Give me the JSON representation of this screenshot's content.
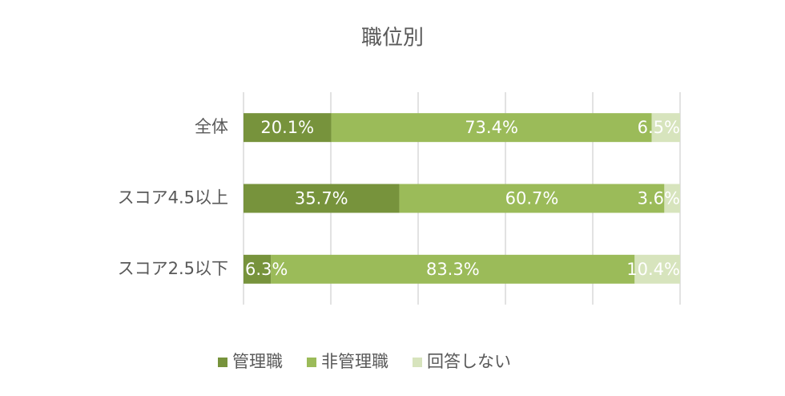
{
  "chart_data": {
    "type": "stacked_bar_horizontal",
    "title": "職位別",
    "categories": [
      "全体",
      "スコア4.5以上",
      "スコア2.5以下"
    ],
    "series": [
      {
        "name": "管理職",
        "color": "#77933c",
        "values": [
          20.1,
          35.7,
          6.3
        ],
        "value_labels": [
          "20.1%",
          "35.7%",
          "6.3%"
        ]
      },
      {
        "name": "非管理職",
        "color": "#9bbb59",
        "values": [
          73.4,
          60.7,
          83.3
        ],
        "value_labels": [
          "73.4%",
          "60.7%",
          "83.3%"
        ]
      },
      {
        "name": "回答しない",
        "color": "#d7e4bd",
        "values": [
          6.5,
          3.6,
          10.4
        ],
        "value_labels": [
          "6.5%",
          "3.6%",
          "10.4%"
        ]
      }
    ],
    "xlim": [
      0,
      100
    ],
    "xticks": [
      0,
      20,
      40,
      60,
      80,
      100
    ],
    "grid": true,
    "legend": "bottom"
  }
}
